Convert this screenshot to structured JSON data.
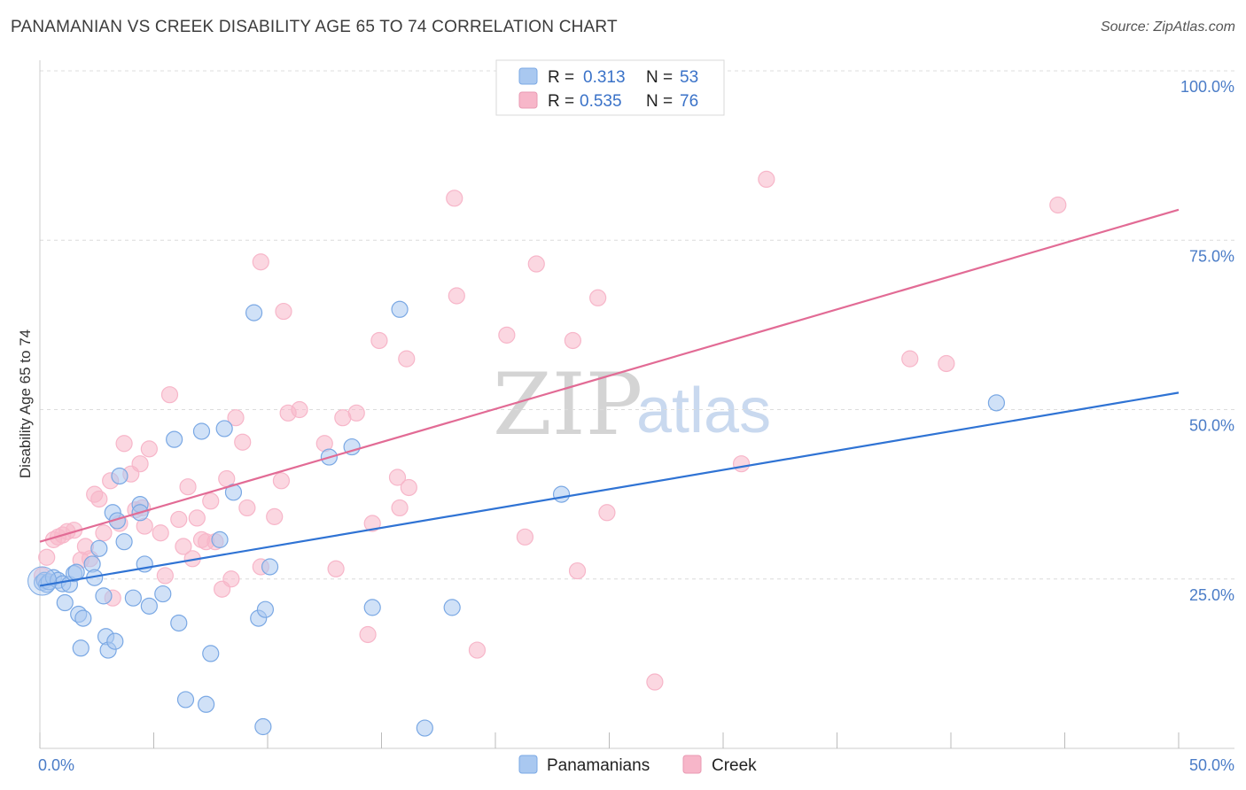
{
  "header": {
    "title": "PANAMANIAN VS CREEK DISABILITY AGE 65 TO 74 CORRELATION CHART",
    "source": "Source: ZipAtlas.com"
  },
  "watermark": {
    "zip": "ZIP",
    "atlas": "atlas"
  },
  "legend": {
    "rows": [
      {
        "r_label": "R =",
        "r_value": "0.313",
        "n_label": "N =",
        "n_value": "53",
        "color": "#a9c8f0"
      },
      {
        "r_label": "R =",
        "r_value": "0.535",
        "n_label": "N =",
        "n_value": "76",
        "color": "#f7b6c9"
      }
    ]
  },
  "bottom_legend": [
    {
      "label": "Panamanians",
      "color": "#a9c8f0"
    },
    {
      "label": "Creek",
      "color": "#f7b6c9"
    }
  ],
  "colors": {
    "blue_fill": "#a9c8f0",
    "blue_line": "#2f73d4",
    "pink_fill": "#f7b6c9",
    "pink_line": "#e26b95"
  },
  "chart_data": {
    "type": "scatter",
    "title": "PANAMANIAN VS CREEK DISABILITY AGE 65 TO 74 CORRELATION CHART",
    "xlabel": "",
    "ylabel": "Disability Age 65 to 74",
    "xlim": [
      0,
      50
    ],
    "ylim": [
      0,
      100
    ],
    "x_tick_labels": [
      {
        "value": 0,
        "label": "0.0%"
      },
      {
        "value": 50,
        "label": "50.0%"
      }
    ],
    "y_tick_labels": [
      {
        "value": 25,
        "label": "25.0%"
      },
      {
        "value": 50,
        "label": "50.0%"
      },
      {
        "value": 75,
        "label": "75.0%"
      },
      {
        "value": 100,
        "label": "100.0%"
      }
    ],
    "series": [
      {
        "name": "Panamanians",
        "r": 0.313,
        "n": 53,
        "trend": [
          [
            0,
            24.0
          ],
          [
            50,
            52.5
          ]
        ],
        "points": [
          [
            0.1,
            24.5
          ],
          [
            0.2,
            24.8
          ],
          [
            0.3,
            24.2
          ],
          [
            0.4,
            24.6
          ],
          [
            0.6,
            25.2
          ],
          [
            0.8,
            24.8
          ],
          [
            1.0,
            24.3
          ],
          [
            1.1,
            21.5
          ],
          [
            1.3,
            24.2
          ],
          [
            1.5,
            25.8
          ],
          [
            1.6,
            26.0
          ],
          [
            1.7,
            19.8
          ],
          [
            1.8,
            14.8
          ],
          [
            1.9,
            19.2
          ],
          [
            2.3,
            27.2
          ],
          [
            2.4,
            25.2
          ],
          [
            2.6,
            29.5
          ],
          [
            2.8,
            22.5
          ],
          [
            2.9,
            16.5
          ],
          [
            3.0,
            14.5
          ],
          [
            3.2,
            34.8
          ],
          [
            3.3,
            15.8
          ],
          [
            3.4,
            33.6
          ],
          [
            3.5,
            40.2
          ],
          [
            3.7,
            30.5
          ],
          [
            4.1,
            22.2
          ],
          [
            4.4,
            36.0
          ],
          [
            4.4,
            34.8
          ],
          [
            4.6,
            27.2
          ],
          [
            4.8,
            21.0
          ],
          [
            5.4,
            22.8
          ],
          [
            5.9,
            45.6
          ],
          [
            6.1,
            18.5
          ],
          [
            6.4,
            7.2
          ],
          [
            7.1,
            46.8
          ],
          [
            7.3,
            6.5
          ],
          [
            7.5,
            14.0
          ],
          [
            7.9,
            30.8
          ],
          [
            8.1,
            47.2
          ],
          [
            8.5,
            37.8
          ],
          [
            9.4,
            64.3
          ],
          [
            9.6,
            19.2
          ],
          [
            9.8,
            3.2
          ],
          [
            9.9,
            20.5
          ],
          [
            10.1,
            26.8
          ],
          [
            12.7,
            43.0
          ],
          [
            13.7,
            44.5
          ],
          [
            14.6,
            20.8
          ],
          [
            15.8,
            64.8
          ],
          [
            16.9,
            3.0
          ],
          [
            18.1,
            20.8
          ],
          [
            22.9,
            37.5
          ],
          [
            42.0,
            51.0
          ]
        ]
      },
      {
        "name": "Creek",
        "r": 0.535,
        "n": 76,
        "trend": [
          [
            0,
            30.5
          ],
          [
            50,
            79.5
          ]
        ],
        "points": [
          [
            0.1,
            25.5
          ],
          [
            0.3,
            28.2
          ],
          [
            0.6,
            30.8
          ],
          [
            0.8,
            31.2
          ],
          [
            1.0,
            31.5
          ],
          [
            1.2,
            32.0
          ],
          [
            1.5,
            32.2
          ],
          [
            1.8,
            27.8
          ],
          [
            2.0,
            29.8
          ],
          [
            2.2,
            28.0
          ],
          [
            2.4,
            37.5
          ],
          [
            2.6,
            36.8
          ],
          [
            2.8,
            31.8
          ],
          [
            3.1,
            39.5
          ],
          [
            3.2,
            22.2
          ],
          [
            3.5,
            33.2
          ],
          [
            3.7,
            45.0
          ],
          [
            4.0,
            40.5
          ],
          [
            4.2,
            35.2
          ],
          [
            4.4,
            42.0
          ],
          [
            4.5,
            35.5
          ],
          [
            4.6,
            32.8
          ],
          [
            4.8,
            44.2
          ],
          [
            5.3,
            31.8
          ],
          [
            5.5,
            25.5
          ],
          [
            5.7,
            52.2
          ],
          [
            6.1,
            33.8
          ],
          [
            6.3,
            29.8
          ],
          [
            6.5,
            38.6
          ],
          [
            6.7,
            28.0
          ],
          [
            6.9,
            34.0
          ],
          [
            7.1,
            30.8
          ],
          [
            7.3,
            30.5
          ],
          [
            7.5,
            36.5
          ],
          [
            7.7,
            30.5
          ],
          [
            8.0,
            23.5
          ],
          [
            8.2,
            39.8
          ],
          [
            8.4,
            25.0
          ],
          [
            8.6,
            48.8
          ],
          [
            8.9,
            45.2
          ],
          [
            9.1,
            35.5
          ],
          [
            9.7,
            26.8
          ],
          [
            9.7,
            71.8
          ],
          [
            10.3,
            34.2
          ],
          [
            10.6,
            39.5
          ],
          [
            10.7,
            64.5
          ],
          [
            10.9,
            49.5
          ],
          [
            11.4,
            50.0
          ],
          [
            12.5,
            45.0
          ],
          [
            13.0,
            26.5
          ],
          [
            13.3,
            48.8
          ],
          [
            13.9,
            49.5
          ],
          [
            14.4,
            16.8
          ],
          [
            14.6,
            33.2
          ],
          [
            14.9,
            60.2
          ],
          [
            15.7,
            40.0
          ],
          [
            15.8,
            35.5
          ],
          [
            16.1,
            57.5
          ],
          [
            16.2,
            38.5
          ],
          [
            18.2,
            81.2
          ],
          [
            18.3,
            66.8
          ],
          [
            19.2,
            14.5
          ],
          [
            20.5,
            61.0
          ],
          [
            21.3,
            31.2
          ],
          [
            21.8,
            71.5
          ],
          [
            23.0,
            100.2
          ],
          [
            23.4,
            60.2
          ],
          [
            23.6,
            26.2
          ],
          [
            24.5,
            66.5
          ],
          [
            24.9,
            34.8
          ],
          [
            27.0,
            9.8
          ],
          [
            30.8,
            42.0
          ],
          [
            31.9,
            84.0
          ],
          [
            38.2,
            57.5
          ],
          [
            39.8,
            56.8
          ],
          [
            44.7,
            80.2
          ]
        ]
      }
    ]
  }
}
